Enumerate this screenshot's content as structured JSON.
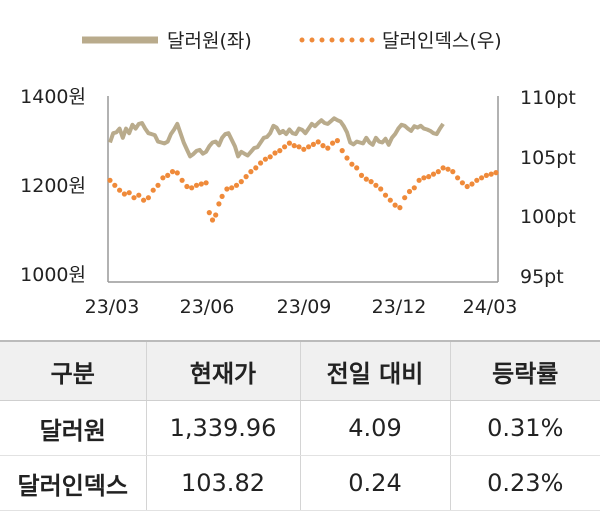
{
  "legend": [
    {
      "label": "달러원(좌)",
      "color": "#b9ab8c",
      "style": "solid"
    },
    {
      "label": "달러인덱스(우)",
      "color": "#ef8a3a",
      "style": "dotted"
    }
  ],
  "chart_data": {
    "type": "line",
    "x_ticks": [
      "23/03",
      "23/06",
      "23/09",
      "23/12",
      "24/03"
    ],
    "left_axis": {
      "ticks": [
        "1400원",
        "1200원",
        "1000원"
      ],
      "range": [
        1000,
        1400
      ]
    },
    "right_axis": {
      "ticks": [
        "110pt",
        "105pt",
        "100pt",
        "95pt"
      ],
      "range": [
        95,
        110
      ]
    },
    "series": [
      {
        "name": "달러원(좌)",
        "axis": "left",
        "color": "#b9ab8c",
        "points": [
          [
            0,
            1300
          ],
          [
            2,
            1320
          ],
          [
            4,
            1322
          ],
          [
            6,
            1330
          ],
          [
            8,
            1310
          ],
          [
            10,
            1330
          ],
          [
            12,
            1320
          ],
          [
            14,
            1338
          ],
          [
            16,
            1330
          ],
          [
            18,
            1340
          ],
          [
            20,
            1342
          ],
          [
            22,
            1330
          ],
          [
            24,
            1320
          ],
          [
            26,
            1318
          ],
          [
            28,
            1316
          ],
          [
            30,
            1302
          ],
          [
            32,
            1300
          ],
          [
            34,
            1298
          ],
          [
            36,
            1302
          ],
          [
            38,
            1318
          ],
          [
            40,
            1328
          ],
          [
            42,
            1340
          ],
          [
            44,
            1320
          ],
          [
            46,
            1300
          ],
          [
            48,
            1285
          ],
          [
            50,
            1270
          ],
          [
            52,
            1275
          ],
          [
            54,
            1282
          ],
          [
            56,
            1284
          ],
          [
            58,
            1276
          ],
          [
            60,
            1280
          ],
          [
            62,
            1292
          ],
          [
            64,
            1300
          ],
          [
            66,
            1302
          ],
          [
            68,
            1294
          ],
          [
            70,
            1310
          ],
          [
            72,
            1318
          ],
          [
            74,
            1320
          ],
          [
            76,
            1306
          ],
          [
            78,
            1292
          ],
          [
            80,
            1270
          ],
          [
            82,
            1280
          ],
          [
            84,
            1276
          ],
          [
            86,
            1272
          ],
          [
            88,
            1280
          ],
          [
            90,
            1288
          ],
          [
            92,
            1290
          ],
          [
            94,
            1300
          ],
          [
            96,
            1310
          ],
          [
            98,
            1312
          ],
          [
            100,
            1320
          ],
          [
            102,
            1336
          ],
          [
            104,
            1332
          ],
          [
            106,
            1320
          ],
          [
            108,
            1325
          ],
          [
            110,
            1318
          ],
          [
            112,
            1328
          ],
          [
            114,
            1320
          ],
          [
            116,
            1318
          ],
          [
            118,
            1330
          ],
          [
            120,
            1327
          ],
          [
            122,
            1320
          ],
          [
            124,
            1330
          ],
          [
            126,
            1340
          ],
          [
            128,
            1335
          ],
          [
            130,
            1342
          ],
          [
            132,
            1348
          ],
          [
            134,
            1342
          ],
          [
            136,
            1340
          ],
          [
            138,
            1346
          ],
          [
            140,
            1352
          ],
          [
            142,
            1348
          ],
          [
            144,
            1345
          ],
          [
            146,
            1335
          ],
          [
            148,
            1322
          ],
          [
            150,
            1300
          ],
          [
            152,
            1296
          ],
          [
            154,
            1302
          ],
          [
            156,
            1300
          ],
          [
            158,
            1298
          ],
          [
            160,
            1310
          ],
          [
            162,
            1300
          ],
          [
            164,
            1295
          ],
          [
            166,
            1310
          ],
          [
            168,
            1302
          ],
          [
            170,
            1300
          ],
          [
            172,
            1308
          ],
          [
            174,
            1295
          ],
          [
            176,
            1310
          ],
          [
            178,
            1318
          ],
          [
            180,
            1330
          ],
          [
            182,
            1338
          ],
          [
            184,
            1336
          ],
          [
            186,
            1330
          ],
          [
            188,
            1325
          ],
          [
            190,
            1335
          ],
          [
            192,
            1332
          ],
          [
            194,
            1336
          ],
          [
            196,
            1330
          ],
          [
            198,
            1328
          ],
          [
            200,
            1325
          ],
          [
            202,
            1320
          ],
          [
            204,
            1318
          ],
          [
            206,
            1330
          ],
          [
            208,
            1340
          ]
        ]
      },
      {
        "name": "달러인덱스(우)",
        "axis": "right",
        "color": "#ef8a3a",
        "points": [
          [
            0,
            103.2
          ],
          [
            3,
            102.8
          ],
          [
            6,
            102.4
          ],
          [
            9,
            102.1
          ],
          [
            12,
            102.2
          ],
          [
            15,
            101.8
          ],
          [
            18,
            102.0
          ],
          [
            21,
            101.6
          ],
          [
            24,
            101.8
          ],
          [
            27,
            102.4
          ],
          [
            30,
            102.8
          ],
          [
            33,
            103.4
          ],
          [
            36,
            103.6
          ],
          [
            39,
            103.9
          ],
          [
            42,
            103.8
          ],
          [
            45,
            103.2
          ],
          [
            48,
            102.7
          ],
          [
            51,
            102.6
          ],
          [
            54,
            102.8
          ],
          [
            57,
            102.9
          ],
          [
            60,
            103.0
          ],
          [
            62,
            100.6
          ],
          [
            64,
            100.0
          ],
          [
            66,
            100.4
          ],
          [
            68,
            101.3
          ],
          [
            70,
            101.9
          ],
          [
            73,
            102.5
          ],
          [
            76,
            102.6
          ],
          [
            79,
            102.8
          ],
          [
            82,
            103.1
          ],
          [
            85,
            103.5
          ],
          [
            88,
            103.9
          ],
          [
            91,
            104.2
          ],
          [
            94,
            104.6
          ],
          [
            97,
            104.9
          ],
          [
            100,
            105.1
          ],
          [
            103,
            105.4
          ],
          [
            106,
            105.6
          ],
          [
            109,
            105.9
          ],
          [
            112,
            106.2
          ],
          [
            115,
            106.0
          ],
          [
            118,
            105.9
          ],
          [
            121,
            105.7
          ],
          [
            124,
            105.9
          ],
          [
            127,
            106.1
          ],
          [
            130,
            106.3
          ],
          [
            133,
            106.0
          ],
          [
            136,
            105.8
          ],
          [
            139,
            106.2
          ],
          [
            142,
            106.4
          ],
          [
            145,
            105.6
          ],
          [
            148,
            105.0
          ],
          [
            151,
            104.5
          ],
          [
            154,
            104.2
          ],
          [
            157,
            103.6
          ],
          [
            160,
            103.3
          ],
          [
            163,
            103.1
          ],
          [
            166,
            102.8
          ],
          [
            169,
            102.5
          ],
          [
            172,
            102.0
          ],
          [
            175,
            101.6
          ],
          [
            178,
            101.2
          ],
          [
            181,
            101.0
          ],
          [
            184,
            101.8
          ],
          [
            187,
            102.3
          ],
          [
            190,
            102.6
          ],
          [
            193,
            103.2
          ],
          [
            196,
            103.4
          ],
          [
            199,
            103.5
          ],
          [
            202,
            103.7
          ],
          [
            205,
            103.9
          ],
          [
            208,
            104.2
          ],
          [
            211,
            104.1
          ],
          [
            214,
            103.9
          ],
          [
            217,
            103.4
          ],
          [
            220,
            103.0
          ],
          [
            223,
            102.7
          ],
          [
            226,
            102.9
          ],
          [
            229,
            103.2
          ],
          [
            232,
            103.4
          ],
          [
            235,
            103.6
          ],
          [
            238,
            103.7
          ],
          [
            241,
            103.82
          ]
        ]
      }
    ]
  },
  "table": {
    "headers": [
      "구분",
      "현재가",
      "전일 대비",
      "등락률"
    ],
    "rows": [
      {
        "name": "달러원",
        "price": "1,339.96",
        "change": "4.09",
        "rate": "0.31%"
      },
      {
        "name": "달러인덱스",
        "price": "103.82",
        "change": "0.24",
        "rate": "0.23%"
      }
    ]
  }
}
